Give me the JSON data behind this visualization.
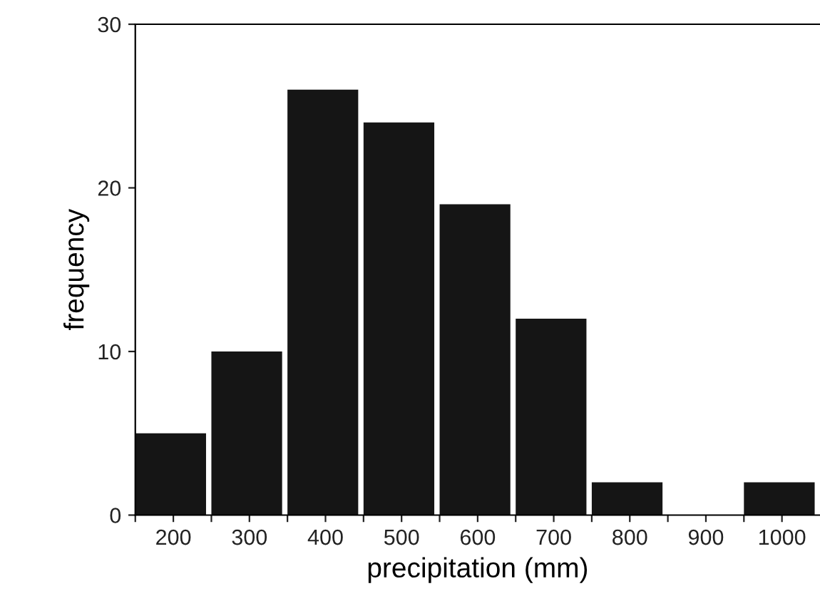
{
  "chart_data": {
    "type": "histogram",
    "xlabel": "precipitation (mm)",
    "ylabel": "frequency",
    "bins": [
      150,
      250,
      350,
      450,
      550,
      650,
      750,
      850,
      950,
      1050
    ],
    "values": [
      5,
      10,
      26,
      24,
      19,
      12,
      2,
      0,
      2
    ],
    "color": "#151515",
    "xlim": [
      150,
      1050
    ],
    "ylim": [
      0,
      30
    ],
    "xticks": [
      {
        "value": 150,
        "label": null
      },
      {
        "value": 200,
        "label": "200"
      },
      {
        "value": 250,
        "label": null
      },
      {
        "value": 300,
        "label": "300"
      },
      {
        "value": 350,
        "label": null
      },
      {
        "value": 400,
        "label": "400"
      },
      {
        "value": 450,
        "label": null
      },
      {
        "value": 500,
        "label": "500"
      },
      {
        "value": 550,
        "label": null
      },
      {
        "value": 600,
        "label": "600"
      },
      {
        "value": 650,
        "label": null
      },
      {
        "value": 700,
        "label": "700"
      },
      {
        "value": 750,
        "label": null
      },
      {
        "value": 800,
        "label": "800"
      },
      {
        "value": 850,
        "label": null
      },
      {
        "value": 900,
        "label": "900"
      },
      {
        "value": 950,
        "label": null
      },
      {
        "value": 1000,
        "label": "1000"
      }
    ],
    "yticks": [
      0,
      10,
      20,
      30
    ],
    "grid": false
  }
}
